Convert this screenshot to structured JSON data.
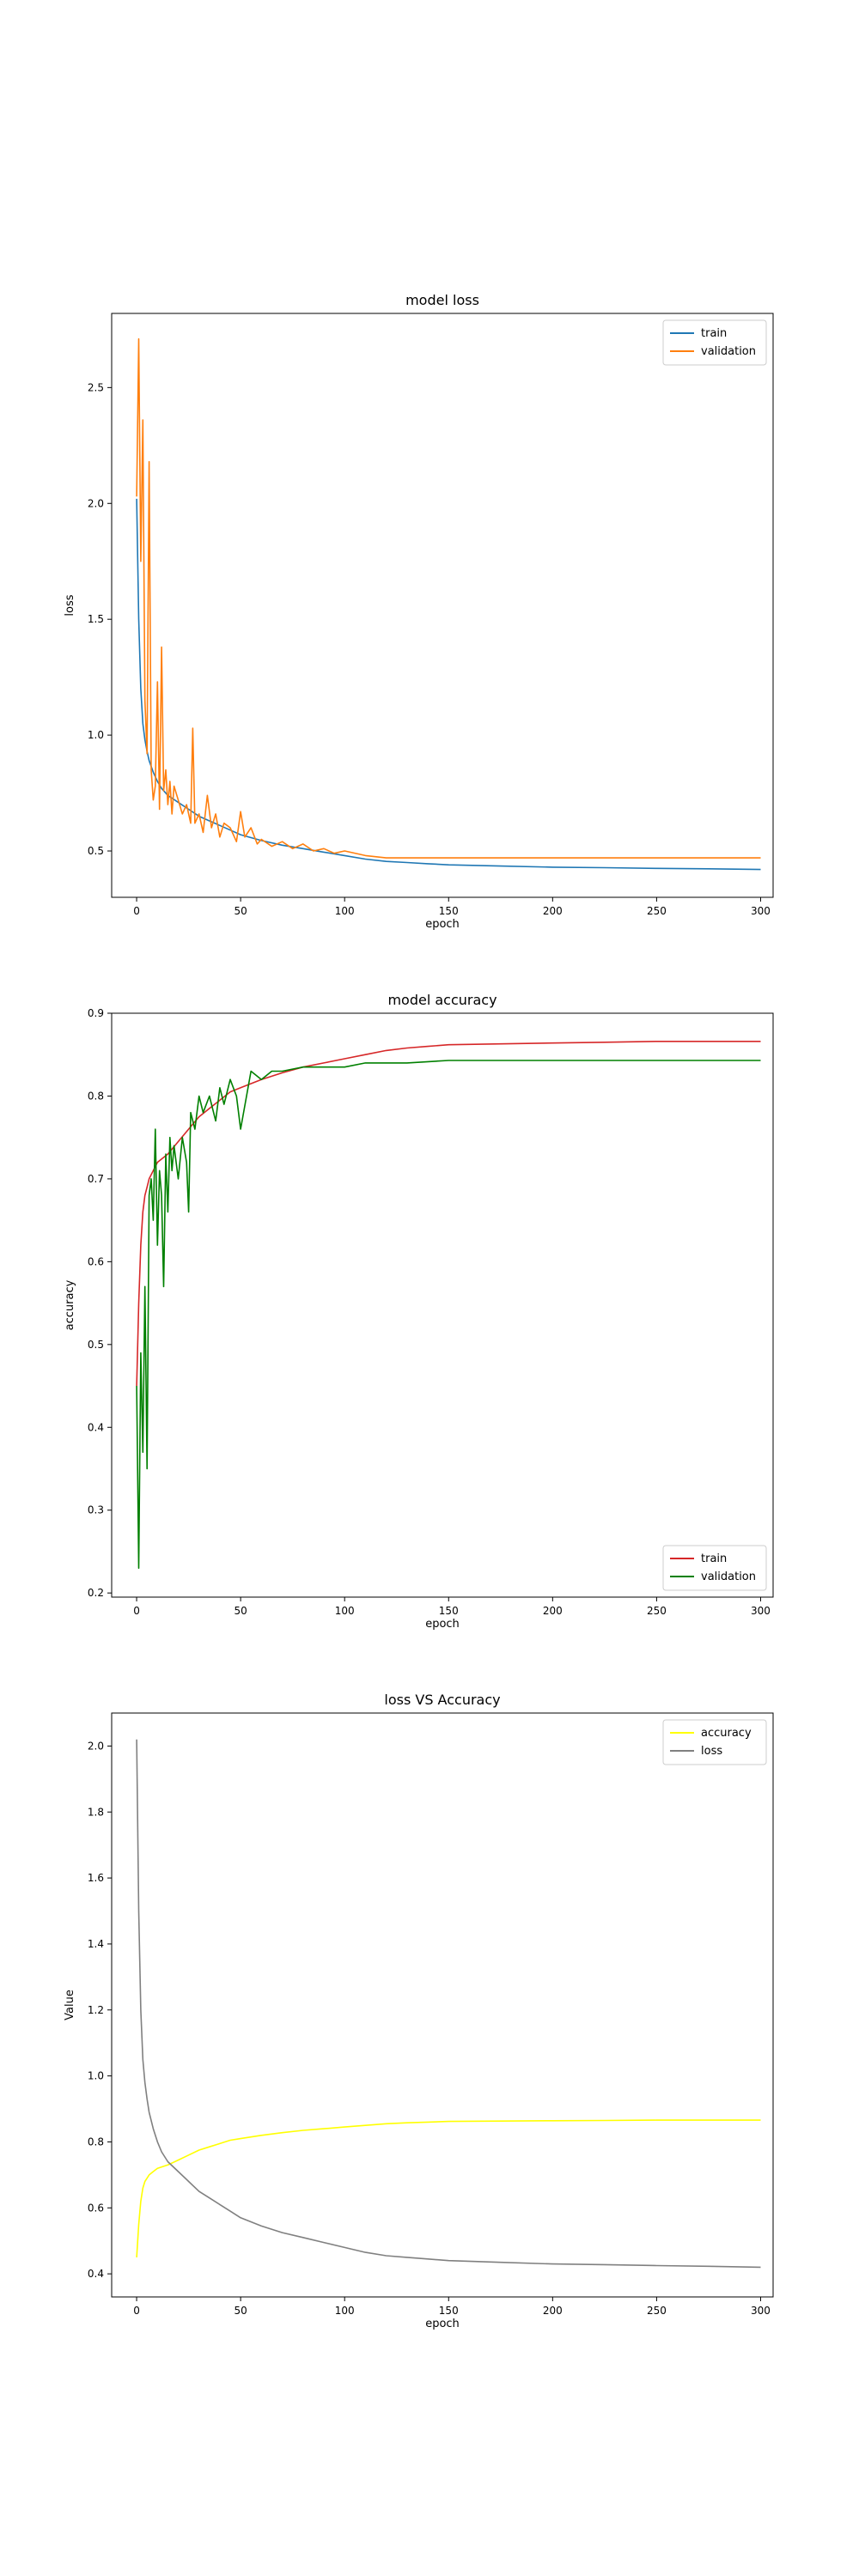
{
  "chart_data": [
    {
      "type": "line",
      "title": "model loss",
      "xlabel": "epoch",
      "ylabel": "loss",
      "xlim": [
        -12,
        306
      ],
      "ylim": [
        0.3,
        2.82
      ],
      "xticks": [
        0,
        50,
        100,
        150,
        200,
        250,
        300
      ],
      "yticks": [
        0.5,
        1.0,
        1.5,
        2.0,
        2.5
      ],
      "tick_decimals": 1,
      "legend_position": "top-right",
      "grid": false,
      "series": [
        {
          "name": "train",
          "color": "#1f77b4",
          "x": [
            0,
            1,
            2,
            3,
            4,
            5,
            6,
            8,
            10,
            12,
            15,
            20,
            25,
            30,
            35,
            40,
            45,
            50,
            60,
            70,
            80,
            90,
            100,
            110,
            120,
            130,
            140,
            150,
            175,
            200,
            225,
            250,
            275,
            300
          ],
          "values": [
            2.02,
            1.5,
            1.2,
            1.05,
            0.98,
            0.93,
            0.89,
            0.84,
            0.8,
            0.77,
            0.74,
            0.71,
            0.68,
            0.65,
            0.63,
            0.61,
            0.59,
            0.57,
            0.545,
            0.525,
            0.51,
            0.495,
            0.48,
            0.465,
            0.455,
            0.45,
            0.445,
            0.44,
            0.435,
            0.43,
            0.428,
            0.425,
            0.423,
            0.42
          ]
        },
        {
          "name": "validation",
          "color": "#ff7f0e",
          "x": [
            0,
            1,
            2,
            3,
            4,
            5,
            6,
            7,
            8,
            9,
            10,
            11,
            12,
            13,
            14,
            15,
            16,
            17,
            18,
            20,
            22,
            24,
            26,
            27,
            28,
            30,
            32,
            34,
            36,
            38,
            40,
            42,
            45,
            48,
            50,
            52,
            55,
            58,
            60,
            65,
            70,
            75,
            80,
            85,
            90,
            95,
            100,
            110,
            120,
            130,
            150,
            175,
            200,
            250,
            300
          ],
          "values": [
            2.03,
            2.71,
            1.75,
            2.36,
            1.15,
            0.92,
            2.18,
            0.85,
            0.72,
            0.78,
            1.23,
            0.68,
            1.38,
            0.76,
            0.85,
            0.7,
            0.8,
            0.66,
            0.78,
            0.72,
            0.66,
            0.7,
            0.62,
            1.03,
            0.62,
            0.66,
            0.58,
            0.74,
            0.6,
            0.66,
            0.56,
            0.62,
            0.6,
            0.54,
            0.67,
            0.56,
            0.6,
            0.53,
            0.55,
            0.52,
            0.54,
            0.51,
            0.53,
            0.5,
            0.51,
            0.49,
            0.5,
            0.48,
            0.47,
            0.47,
            0.47,
            0.47,
            0.47,
            0.47,
            0.47
          ]
        }
      ]
    },
    {
      "type": "line",
      "title": "model accuracy",
      "xlabel": "epoch",
      "ylabel": "accuracy",
      "xlim": [
        -12,
        306
      ],
      "ylim": [
        0.195,
        0.9
      ],
      "xticks": [
        0,
        50,
        100,
        150,
        200,
        250,
        300
      ],
      "yticks": [
        0.2,
        0.3,
        0.4,
        0.5,
        0.6,
        0.7,
        0.8,
        0.9
      ],
      "tick_decimals": 1,
      "legend_position": "bottom-right",
      "grid": false,
      "series": [
        {
          "name": "train",
          "color": "#d62728",
          "x": [
            0,
            1,
            2,
            3,
            4,
            5,
            6,
            8,
            10,
            15,
            20,
            25,
            30,
            35,
            40,
            45,
            50,
            60,
            70,
            80,
            90,
            100,
            110,
            120,
            130,
            140,
            150,
            175,
            200,
            225,
            250,
            275,
            300
          ],
          "values": [
            0.45,
            0.55,
            0.62,
            0.66,
            0.68,
            0.69,
            0.7,
            0.71,
            0.72,
            0.73,
            0.745,
            0.76,
            0.775,
            0.785,
            0.795,
            0.805,
            0.81,
            0.82,
            0.828,
            0.835,
            0.84,
            0.845,
            0.85,
            0.855,
            0.858,
            0.86,
            0.862,
            0.863,
            0.864,
            0.865,
            0.866,
            0.866,
            0.866
          ]
        },
        {
          "name": "validation",
          "color": "#008000",
          "x": [
            0,
            1,
            2,
            3,
            4,
            5,
            6,
            7,
            8,
            9,
            10,
            11,
            12,
            13,
            14,
            15,
            16,
            17,
            18,
            20,
            22,
            24,
            25,
            26,
            28,
            30,
            32,
            35,
            38,
            40,
            42,
            45,
            48,
            50,
            55,
            60,
            65,
            70,
            80,
            90,
            100,
            110,
            120,
            130,
            150,
            175,
            200,
            250,
            300
          ],
          "values": [
            0.45,
            0.23,
            0.49,
            0.37,
            0.57,
            0.35,
            0.68,
            0.7,
            0.65,
            0.76,
            0.62,
            0.71,
            0.68,
            0.57,
            0.73,
            0.66,
            0.75,
            0.71,
            0.74,
            0.7,
            0.75,
            0.72,
            0.66,
            0.78,
            0.76,
            0.8,
            0.78,
            0.8,
            0.77,
            0.81,
            0.79,
            0.82,
            0.8,
            0.76,
            0.83,
            0.82,
            0.83,
            0.83,
            0.835,
            0.835,
            0.835,
            0.84,
            0.84,
            0.84,
            0.843,
            0.843,
            0.843,
            0.843,
            0.843
          ]
        }
      ]
    },
    {
      "type": "line",
      "title": "loss VS Accuracy",
      "xlabel": "epoch",
      "ylabel": "Value",
      "xlim": [
        -12,
        306
      ],
      "ylim": [
        0.33,
        2.1
      ],
      "xticks": [
        0,
        50,
        100,
        150,
        200,
        250,
        300
      ],
      "yticks": [
        0.4,
        0.6,
        0.8,
        1.0,
        1.2,
        1.4,
        1.6,
        1.8,
        2.0
      ],
      "tick_decimals": 1,
      "legend_position": "top-right",
      "grid": false,
      "series": [
        {
          "name": "accuracy",
          "color": "#ffff00",
          "x": [
            0,
            1,
            2,
            3,
            4,
            5,
            6,
            8,
            10,
            15,
            20,
            25,
            30,
            35,
            40,
            45,
            50,
            60,
            70,
            80,
            90,
            100,
            110,
            120,
            130,
            140,
            150,
            175,
            200,
            225,
            250,
            275,
            300
          ],
          "values": [
            0.45,
            0.55,
            0.62,
            0.66,
            0.68,
            0.69,
            0.7,
            0.71,
            0.72,
            0.73,
            0.745,
            0.76,
            0.775,
            0.785,
            0.795,
            0.805,
            0.81,
            0.82,
            0.828,
            0.835,
            0.84,
            0.845,
            0.85,
            0.855,
            0.858,
            0.86,
            0.862,
            0.863,
            0.864,
            0.865,
            0.866,
            0.866,
            0.866
          ]
        },
        {
          "name": "loss",
          "color": "#808080",
          "x": [
            0,
            1,
            2,
            3,
            4,
            5,
            6,
            8,
            10,
            12,
            15,
            20,
            25,
            30,
            35,
            40,
            45,
            50,
            60,
            70,
            80,
            90,
            100,
            110,
            120,
            130,
            140,
            150,
            175,
            200,
            225,
            250,
            275,
            300
          ],
          "values": [
            2.02,
            1.5,
            1.2,
            1.05,
            0.98,
            0.93,
            0.89,
            0.84,
            0.8,
            0.77,
            0.74,
            0.71,
            0.68,
            0.65,
            0.63,
            0.61,
            0.59,
            0.57,
            0.545,
            0.525,
            0.51,
            0.495,
            0.48,
            0.465,
            0.455,
            0.45,
            0.445,
            0.44,
            0.435,
            0.43,
            0.428,
            0.425,
            0.423,
            0.42
          ]
        }
      ]
    }
  ]
}
